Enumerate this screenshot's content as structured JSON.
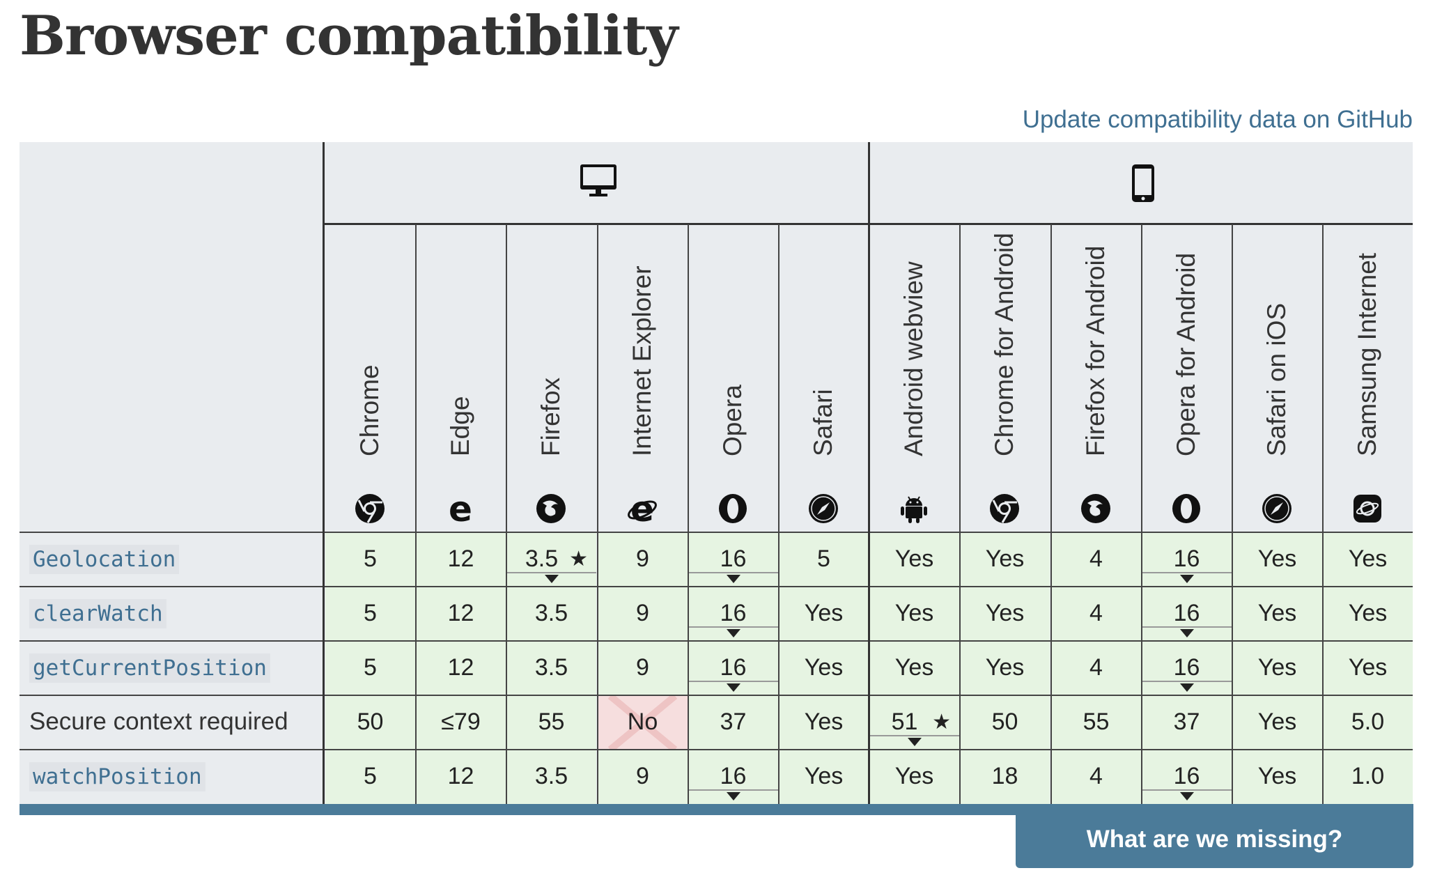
{
  "page": {
    "title": "Browser compatibility",
    "github_link": "Update compatibility data on GitHub",
    "missing_button": "What are we missing?"
  },
  "platforms": [
    {
      "name": "desktop",
      "icon": "desktop-icon"
    },
    {
      "name": "mobile",
      "icon": "mobile-icon"
    }
  ],
  "browsers": [
    {
      "name": "Chrome",
      "icon": "chrome-icon",
      "platform": "desktop"
    },
    {
      "name": "Edge",
      "icon": "edge-icon",
      "platform": "desktop"
    },
    {
      "name": "Firefox",
      "icon": "firefox-icon",
      "platform": "desktop"
    },
    {
      "name": "Internet Explorer",
      "icon": "ie-icon",
      "platform": "desktop"
    },
    {
      "name": "Opera",
      "icon": "opera-icon",
      "platform": "desktop"
    },
    {
      "name": "Safari",
      "icon": "safari-icon",
      "platform": "desktop"
    },
    {
      "name": "Android webview",
      "icon": "android-icon",
      "platform": "mobile"
    },
    {
      "name": "Chrome for Android",
      "icon": "chrome-icon",
      "platform": "mobile"
    },
    {
      "name": "Firefox for Android",
      "icon": "firefox-icon",
      "platform": "mobile"
    },
    {
      "name": "Opera for Android",
      "icon": "opera-icon",
      "platform": "mobile"
    },
    {
      "name": "Safari on iOS",
      "icon": "safari-icon",
      "platform": "mobile"
    },
    {
      "name": "Samsung Internet",
      "icon": "samsung-icon",
      "platform": "mobile"
    }
  ],
  "rows": [
    {
      "label": "Geolocation",
      "code": true,
      "cells": [
        {
          "v": "5"
        },
        {
          "v": "12"
        },
        {
          "v": "3.5",
          "star": true,
          "toggle": true
        },
        {
          "v": "9"
        },
        {
          "v": "16",
          "toggle": true
        },
        {
          "v": "5"
        },
        {
          "v": "Yes"
        },
        {
          "v": "Yes"
        },
        {
          "v": "4"
        },
        {
          "v": "16",
          "toggle": true
        },
        {
          "v": "Yes"
        },
        {
          "v": "Yes"
        }
      ]
    },
    {
      "label": "clearWatch",
      "code": true,
      "cells": [
        {
          "v": "5"
        },
        {
          "v": "12"
        },
        {
          "v": "3.5"
        },
        {
          "v": "9"
        },
        {
          "v": "16",
          "toggle": true
        },
        {
          "v": "Yes"
        },
        {
          "v": "Yes"
        },
        {
          "v": "Yes"
        },
        {
          "v": "4"
        },
        {
          "v": "16",
          "toggle": true
        },
        {
          "v": "Yes"
        },
        {
          "v": "Yes"
        }
      ]
    },
    {
      "label": "getCurrentPosition",
      "code": true,
      "cells": [
        {
          "v": "5"
        },
        {
          "v": "12"
        },
        {
          "v": "3.5"
        },
        {
          "v": "9"
        },
        {
          "v": "16",
          "toggle": true
        },
        {
          "v": "Yes"
        },
        {
          "v": "Yes"
        },
        {
          "v": "Yes"
        },
        {
          "v": "4"
        },
        {
          "v": "16",
          "toggle": true
        },
        {
          "v": "Yes"
        },
        {
          "v": "Yes"
        }
      ]
    },
    {
      "label": "Secure context required",
      "code": false,
      "cells": [
        {
          "v": "50"
        },
        {
          "v": "≤79"
        },
        {
          "v": "55"
        },
        {
          "v": "No",
          "no": true
        },
        {
          "v": "37"
        },
        {
          "v": "Yes"
        },
        {
          "v": "51",
          "star": true,
          "toggle": true
        },
        {
          "v": "50"
        },
        {
          "v": "55"
        },
        {
          "v": "37"
        },
        {
          "v": "Yes"
        },
        {
          "v": "5.0"
        }
      ]
    },
    {
      "label": "watchPosition",
      "code": true,
      "cells": [
        {
          "v": "5"
        },
        {
          "v": "12"
        },
        {
          "v": "3.5"
        },
        {
          "v": "9"
        },
        {
          "v": "16",
          "toggle": true
        },
        {
          "v": "Yes"
        },
        {
          "v": "Yes"
        },
        {
          "v": "18"
        },
        {
          "v": "4"
        },
        {
          "v": "16",
          "toggle": true
        },
        {
          "v": "Yes"
        },
        {
          "v": "1.0"
        }
      ]
    }
  ]
}
